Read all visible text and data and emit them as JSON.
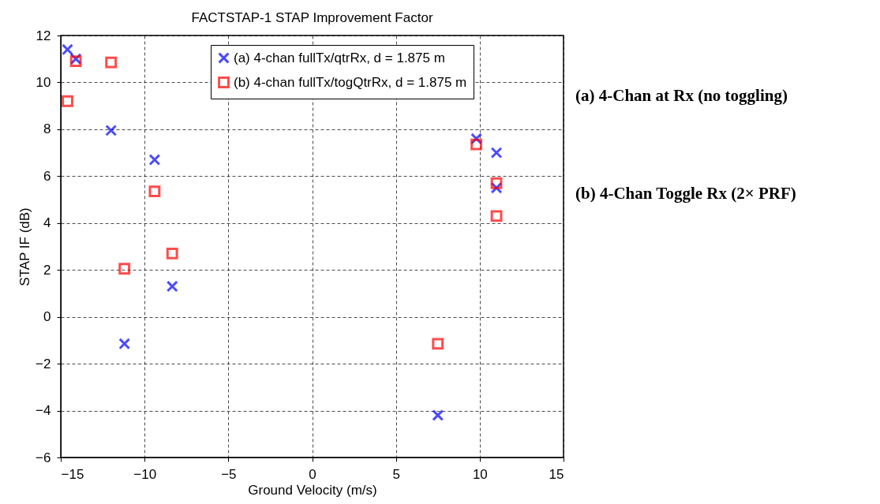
{
  "chart_data": {
    "type": "scatter",
    "title": "FACTSTAP-1 STAP Improvement Factor",
    "xlabel": "Ground Velocity (m/s)",
    "ylabel": "STAP IF (dB)",
    "xlim": [
      -15,
      15
    ],
    "xticks": [
      -15,
      -10,
      -5,
      0,
      5,
      10,
      15
    ],
    "ylim": [
      -6,
      12
    ],
    "yticks": [
      -6,
      -4,
      -2,
      0,
      2,
      4,
      6,
      8,
      10,
      12
    ],
    "grid": true,
    "legend": "top right",
    "series": [
      {
        "name": "(a) 4-chan fullTx/qtrRx, d = 1.875 m",
        "color": "#0000ff",
        "marker": "cross",
        "x": [
          -14.6,
          -14.1,
          -12.0,
          -9.4,
          -11.2,
          -8.35,
          7.5,
          9.8,
          11.0,
          11.0
        ],
        "values": [
          11.4,
          11.0,
          7.95,
          6.7,
          -1.15,
          1.3,
          -4.2,
          7.6,
          7.0,
          5.5
        ]
      },
      {
        "name": "(b) 4-chan fullTx/togQtrRx, d = 1.875 m",
        "color": "#ff0000",
        "marker": "square",
        "x": [
          -14.6,
          -14.1,
          -12.0,
          -9.4,
          -11.2,
          -8.35,
          7.5,
          9.8,
          11.0,
          11.0
        ],
        "values": [
          9.2,
          10.9,
          10.85,
          5.35,
          2.05,
          2.7,
          -1.15,
          7.35,
          5.7,
          4.3
        ]
      }
    ],
    "annotations": [
      "(a) 4-Chan at Rx (no toggling)",
      "(b) 4-Chan Toggle Rx (2× PRF)"
    ]
  }
}
